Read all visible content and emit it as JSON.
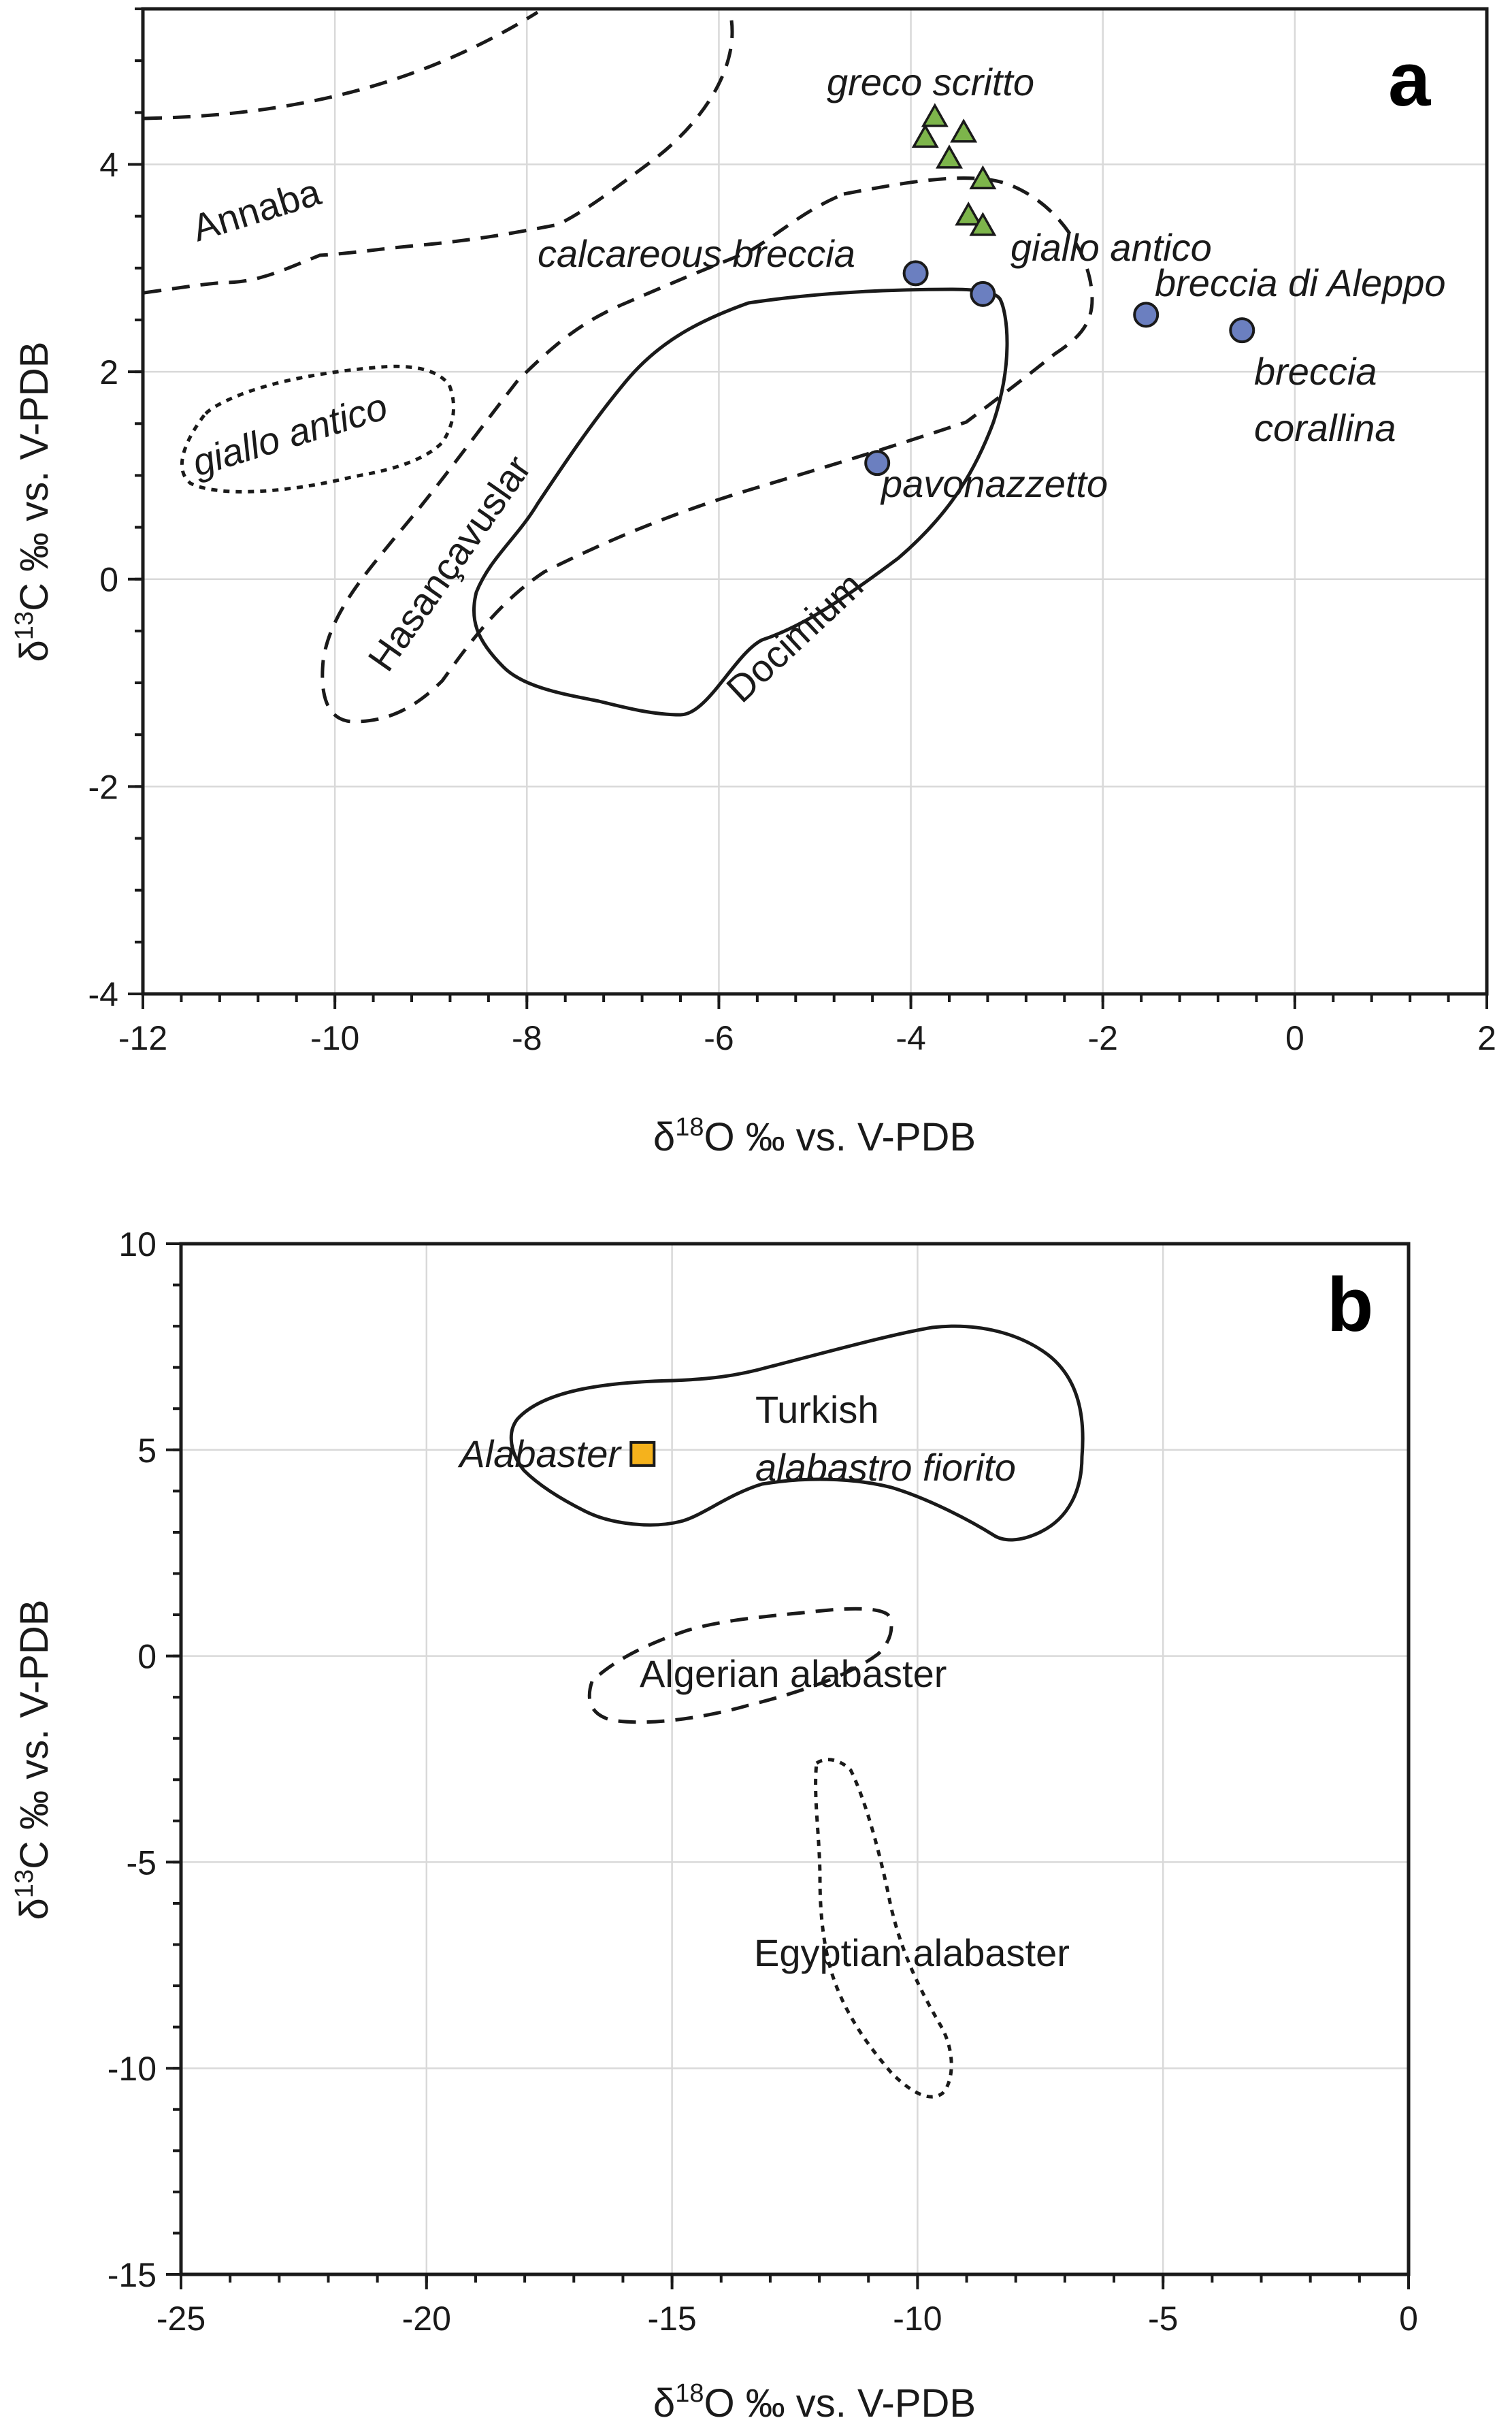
{
  "chart_data": [
    {
      "panel_label": "a",
      "type": "scatter",
      "xlabel": "δ18O ‰ vs. V-PDB",
      "ylabel": "δ13C ‰ vs. V-PDB",
      "xlim": [
        -12,
        2
      ],
      "ylim": [
        -4,
        5.5
      ],
      "xticks": [
        -12,
        -10,
        -8,
        -6,
        -4,
        -2,
        0,
        2
      ],
      "yticks": [
        -4,
        -2,
        0,
        2,
        4
      ],
      "xtick_labels": [
        "-12",
        "-10",
        "-8",
        "-6",
        "-4",
        "-2",
        "0",
        "2"
      ],
      "ytick_labels": [
        "-4",
        "-2",
        "0",
        "2",
        "4"
      ],
      "grid": true,
      "series": [
        {
          "marker": "triangle",
          "color": "#7db54b",
          "points": [
            {
              "x": -3.75,
              "y": 4.45
            },
            {
              "x": -3.85,
              "y": 4.25
            },
            {
              "x": -3.45,
              "y": 4.3
            },
            {
              "x": -3.6,
              "y": 4.05
            },
            {
              "x": -3.25,
              "y": 3.85
            },
            {
              "x": -3.4,
              "y": 3.5
            },
            {
              "x": -3.25,
              "y": 3.4
            }
          ]
        },
        {
          "marker": "circle",
          "color": "#6b7fc0",
          "points": [
            {
              "x": -3.95,
              "y": 2.95
            },
            {
              "x": -3.25,
              "y": 2.75
            },
            {
              "x": -1.55,
              "y": 2.55
            },
            {
              "x": -0.55,
              "y": 2.4
            },
            {
              "x": -4.35,
              "y": 1.12
            }
          ]
        }
      ],
      "regions": [
        {
          "name": "Annaba",
          "style": "dashed"
        },
        {
          "name": "giallo antico",
          "style": "dotted"
        },
        {
          "name": "Hasançavuslar",
          "style": "dashed"
        },
        {
          "name": "Docimium",
          "style": "solid"
        }
      ],
      "annotations": {
        "greco_scritto": "greco scritto",
        "calcareous_breccia": "calcareous breccia",
        "giallo_antico_point": "giallo antico",
        "breccia_di_aleppo": "breccia di Aleppo",
        "breccia_corallina_1": "breccia",
        "breccia_corallina_2": "corallina",
        "pavonazzetto": "pavonazzetto",
        "annaba": "Annaba",
        "giallo_antico_region": "giallo antico",
        "hasancavuslar": "Hasançavuslar",
        "docimium": "Docimium"
      }
    },
    {
      "panel_label": "b",
      "type": "scatter",
      "xlabel": "δ18O ‰ vs. V-PDB",
      "ylabel": "δ13C ‰ vs. V-PDB",
      "xlim": [
        -25,
        0
      ],
      "ylim": [
        -15,
        10
      ],
      "xticks": [
        -25,
        -20,
        -15,
        -10,
        -5,
        0
      ],
      "yticks": [
        -15,
        -10,
        -5,
        0,
        5,
        10
      ],
      "xtick_labels": [
        "-25",
        "-20",
        "-15",
        "-10",
        "-5",
        "0"
      ],
      "ytick_labels": [
        "-15",
        "-10",
        "-5",
        "0",
        "5",
        "10"
      ],
      "grid": true,
      "series": [
        {
          "marker": "square",
          "color": "#f5b21c",
          "points": [
            {
              "x": -15.6,
              "y": 4.9
            }
          ]
        }
      ],
      "regions": [
        {
          "name": "Turkish alabastro fiorito",
          "style": "solid"
        },
        {
          "name": "Algerian alabaster",
          "style": "dashed"
        },
        {
          "name": "Egyptian alabaster",
          "style": "dotted"
        }
      ],
      "annotations": {
        "alabaster": "Alabaster",
        "turkish_1": "Turkish",
        "turkish_2": "alabastro fiorito",
        "algerian": "Algerian alabaster",
        "egyptian": "Egyptian alabaster"
      }
    }
  ]
}
